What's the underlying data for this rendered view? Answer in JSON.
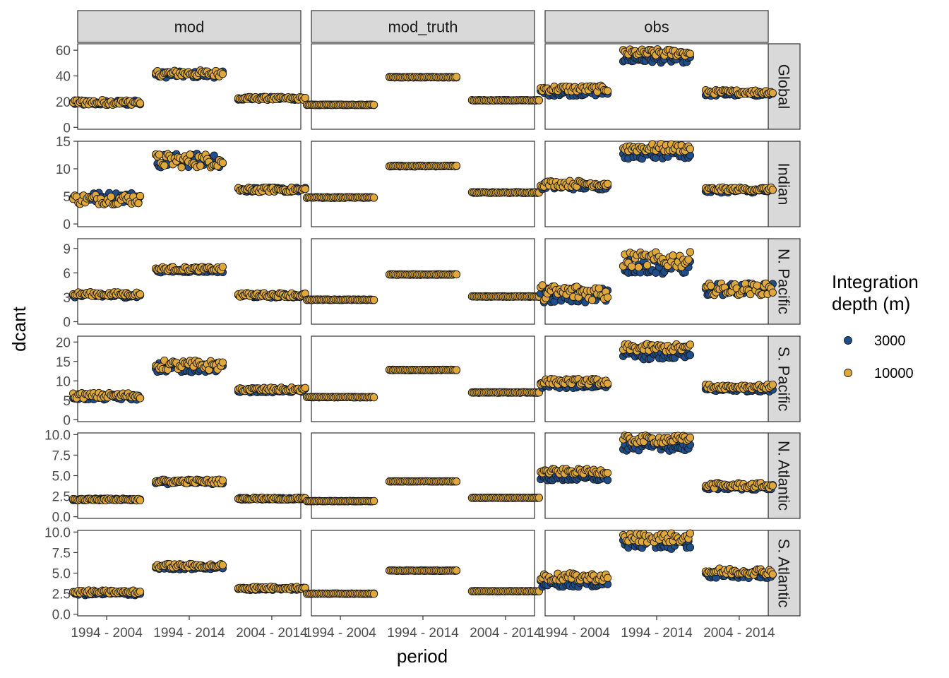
{
  "chart_data": {
    "type": "scatter",
    "title": "",
    "xlabel": "period",
    "ylabel": "dcant",
    "grid": false,
    "legend_position": "right",
    "legend": {
      "title_lines": [
        "Integration",
        "depth (m)"
      ],
      "entries": [
        {
          "label": "3000",
          "color": "#1f4e8c"
        },
        {
          "label": "10000",
          "color": "#e0a83a"
        }
      ]
    },
    "columns": [
      "mod",
      "mod_truth",
      "obs"
    ],
    "rows": [
      "Global",
      "Indian",
      "N. Pacific",
      "S. Pacific",
      "N. Atlantic",
      "S. Atlantic"
    ],
    "periods": [
      "1994 - 2004",
      "1994 - 2014",
      "2004 - 2014"
    ],
    "panel_rows": [
      {
        "name": "Global",
        "ylim": [
          -1.5,
          65
        ],
        "ticks": [
          0,
          20,
          40,
          60
        ],
        "tick_labels": [
          "0",
          "20",
          "40",
          "60"
        ],
        "summary": {
          "mod": {
            "3000": [
              19,
              41,
              22.5
            ],
            "10000": [
              19.5,
              42,
              22.5
            ],
            "spread": [
              2.5,
              3,
              1.5
            ]
          },
          "mod_truth": {
            "3000": [
              17.5,
              39,
              21
            ],
            "10000": [
              17.5,
              39,
              21
            ],
            "spread": [
              0.3,
              0.3,
              0.3
            ]
          },
          "obs": {
            "3000": [
              27,
              53,
              26
            ],
            "10000": [
              30,
              58,
              27.5
            ],
            "spread": [
              3,
              3.5,
              2
            ]
          }
        }
      },
      {
        "name": "Indian",
        "ylim": [
          -0.5,
          15
        ],
        "ticks": [
          0,
          5,
          10,
          15
        ],
        "tick_labels": [
          "0",
          "5",
          "10",
          "15"
        ],
        "summary": {
          "mod": {
            "3000": [
              4.8,
              11.5,
              6.2
            ],
            "10000": [
              4.5,
              11.5,
              6.2
            ],
            "spread": [
              1.2,
              1.6,
              0.5
            ]
          },
          "mod_truth": {
            "3000": [
              4.8,
              10.5,
              5.7
            ],
            "10000": [
              4.8,
              10.5,
              5.7
            ],
            "spread": [
              0.1,
              0.1,
              0.1
            ]
          },
          "obs": {
            "3000": [
              6.8,
              12.5,
              6.0
            ],
            "10000": [
              7.3,
              13.8,
              6.3
            ],
            "spread": [
              0.7,
              0.9,
              0.4
            ]
          }
        }
      },
      {
        "name": "N. Pacific",
        "ylim": [
          -0.3,
          10.2
        ],
        "ticks": [
          0,
          3,
          6,
          9
        ],
        "tick_labels": [
          "0",
          "3",
          "6",
          "9"
        ],
        "summary": {
          "mod": {
            "3000": [
              3.2,
              6.3,
              3.2
            ],
            "10000": [
              3.4,
              6.5,
              3.3
            ],
            "spread": [
              0.3,
              0.3,
              0.3
            ]
          },
          "mod_truth": {
            "3000": [
              2.7,
              5.8,
              3.1
            ],
            "10000": [
              2.7,
              5.8,
              3.1
            ],
            "spread": [
              0.05,
              0.05,
              0.05
            ]
          },
          "obs": {
            "3000": [
              3.3,
              6.8,
              4.0
            ],
            "10000": [
              3.6,
              7.6,
              4.0
            ],
            "spread": [
              1.2,
              1.2,
              0.9
            ]
          }
        }
      },
      {
        "name": "S. Pacific",
        "ylim": [
          -0.5,
          21.5
        ],
        "ticks": [
          0,
          5,
          10,
          15,
          20
        ],
        "tick_labels": [
          "0",
          "5",
          "10",
          "15",
          "20"
        ],
        "summary": {
          "mod": {
            "3000": [
              5.8,
              13.5,
              7.5
            ],
            "10000": [
              6.2,
              14.0,
              7.8
            ],
            "spread": [
              0.9,
              1.6,
              0.6
            ]
          },
          "mod_truth": {
            "3000": [
              5.8,
              12.8,
              7.0
            ],
            "10000": [
              5.8,
              12.8,
              7.0
            ],
            "spread": [
              0.1,
              0.1,
              0.1
            ]
          },
          "obs": {
            "3000": [
              8.8,
              16.5,
              7.8
            ],
            "10000": [
              9.8,
              18.5,
              8.5
            ],
            "spread": [
              0.9,
              1.2,
              0.7
            ]
          }
        }
      },
      {
        "name": "N. Atlantic",
        "ylim": [
          -0.2,
          10.2
        ],
        "ticks": [
          0,
          2.5,
          5,
          7.5,
          10
        ],
        "tick_labels": [
          "0.0",
          "2.5",
          "5.0",
          "7.5",
          "10.0"
        ],
        "summary": {
          "mod": {
            "3000": [
              2.1,
              4.2,
              2.2
            ],
            "10000": [
              2.1,
              4.3,
              2.2
            ],
            "spread": [
              0.15,
              0.3,
              0.15
            ]
          },
          "mod_truth": {
            "3000": [
              1.9,
              4.3,
              2.3
            ],
            "10000": [
              1.9,
              4.3,
              2.3
            ],
            "spread": [
              0.03,
              0.03,
              0.03
            ]
          },
          "obs": {
            "3000": [
              4.7,
              8.5,
              3.6
            ],
            "10000": [
              5.5,
              9.4,
              3.8
            ],
            "spread": [
              0.4,
              0.6,
              0.4
            ]
          }
        }
      },
      {
        "name": "S. Atlantic",
        "ylim": [
          -0.2,
          10.2
        ],
        "ticks": [
          0,
          2.5,
          5,
          7.5,
          10
        ],
        "tick_labels": [
          "0.0",
          "2.5",
          "5.0",
          "7.5",
          "10.0"
        ],
        "summary": {
          "mod": {
            "3000": [
              2.5,
              5.7,
              3.1
            ],
            "10000": [
              2.7,
              5.9,
              3.2
            ],
            "spread": [
              0.25,
              0.3,
              0.2
            ]
          },
          "mod_truth": {
            "3000": [
              2.5,
              5.3,
              2.8
            ],
            "10000": [
              2.5,
              5.3,
              2.8
            ],
            "spread": [
              0.03,
              0.03,
              0.03
            ]
          },
          "obs": {
            "3000": [
              3.8,
              8.5,
              4.8
            ],
            "10000": [
              4.5,
              9.3,
              5.2
            ],
            "spread": [
              0.6,
              0.7,
              0.5
            ]
          }
        }
      }
    ]
  }
}
